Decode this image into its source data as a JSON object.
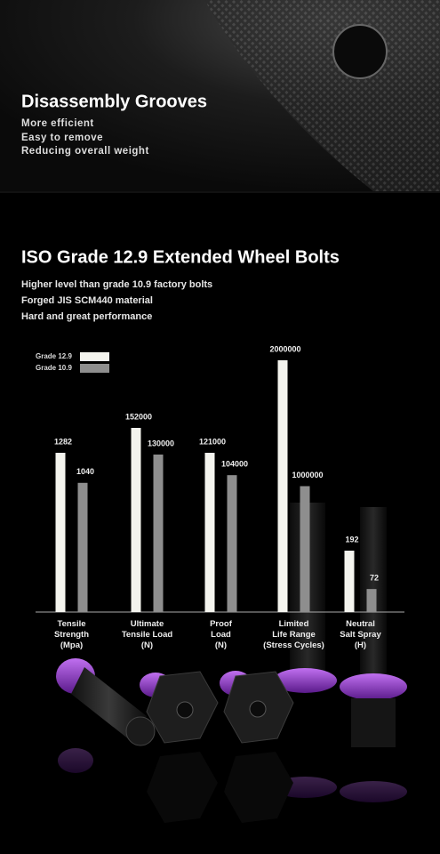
{
  "header": {
    "title": "Disassembly Grooves",
    "lines": [
      "More efficient",
      "Easy to remove",
      "Reducing overall weight"
    ]
  },
  "section": {
    "title": "ISO Grade 12.9 Extended Wheel Bolts",
    "lines": [
      "Higher level than grade 10.9 factory bolts",
      "Forged JIS SCM440 material",
      "Hard and great performance"
    ]
  },
  "chart_data": {
    "type": "bar",
    "categories": [
      "Tensile\nStrength\n(Mpa)",
      "Ultimate\nTensile Load\n(N)",
      "Proof\nLoad\n(N)",
      "Limited\nLife Range\n(Stress Cycles)",
      "Neutral\nSalt Spray\n(H)"
    ],
    "series": [
      {
        "name": "Grade 12.9",
        "color": "#f4f4ee",
        "values": [
          1282,
          152000,
          121000,
          2000000,
          192
        ]
      },
      {
        "name": "Grade 10.9",
        "color": "#8e8e8e",
        "values": [
          1040,
          130000,
          104000,
          1000000,
          72
        ]
      }
    ],
    "legend": "upper left"
  }
}
